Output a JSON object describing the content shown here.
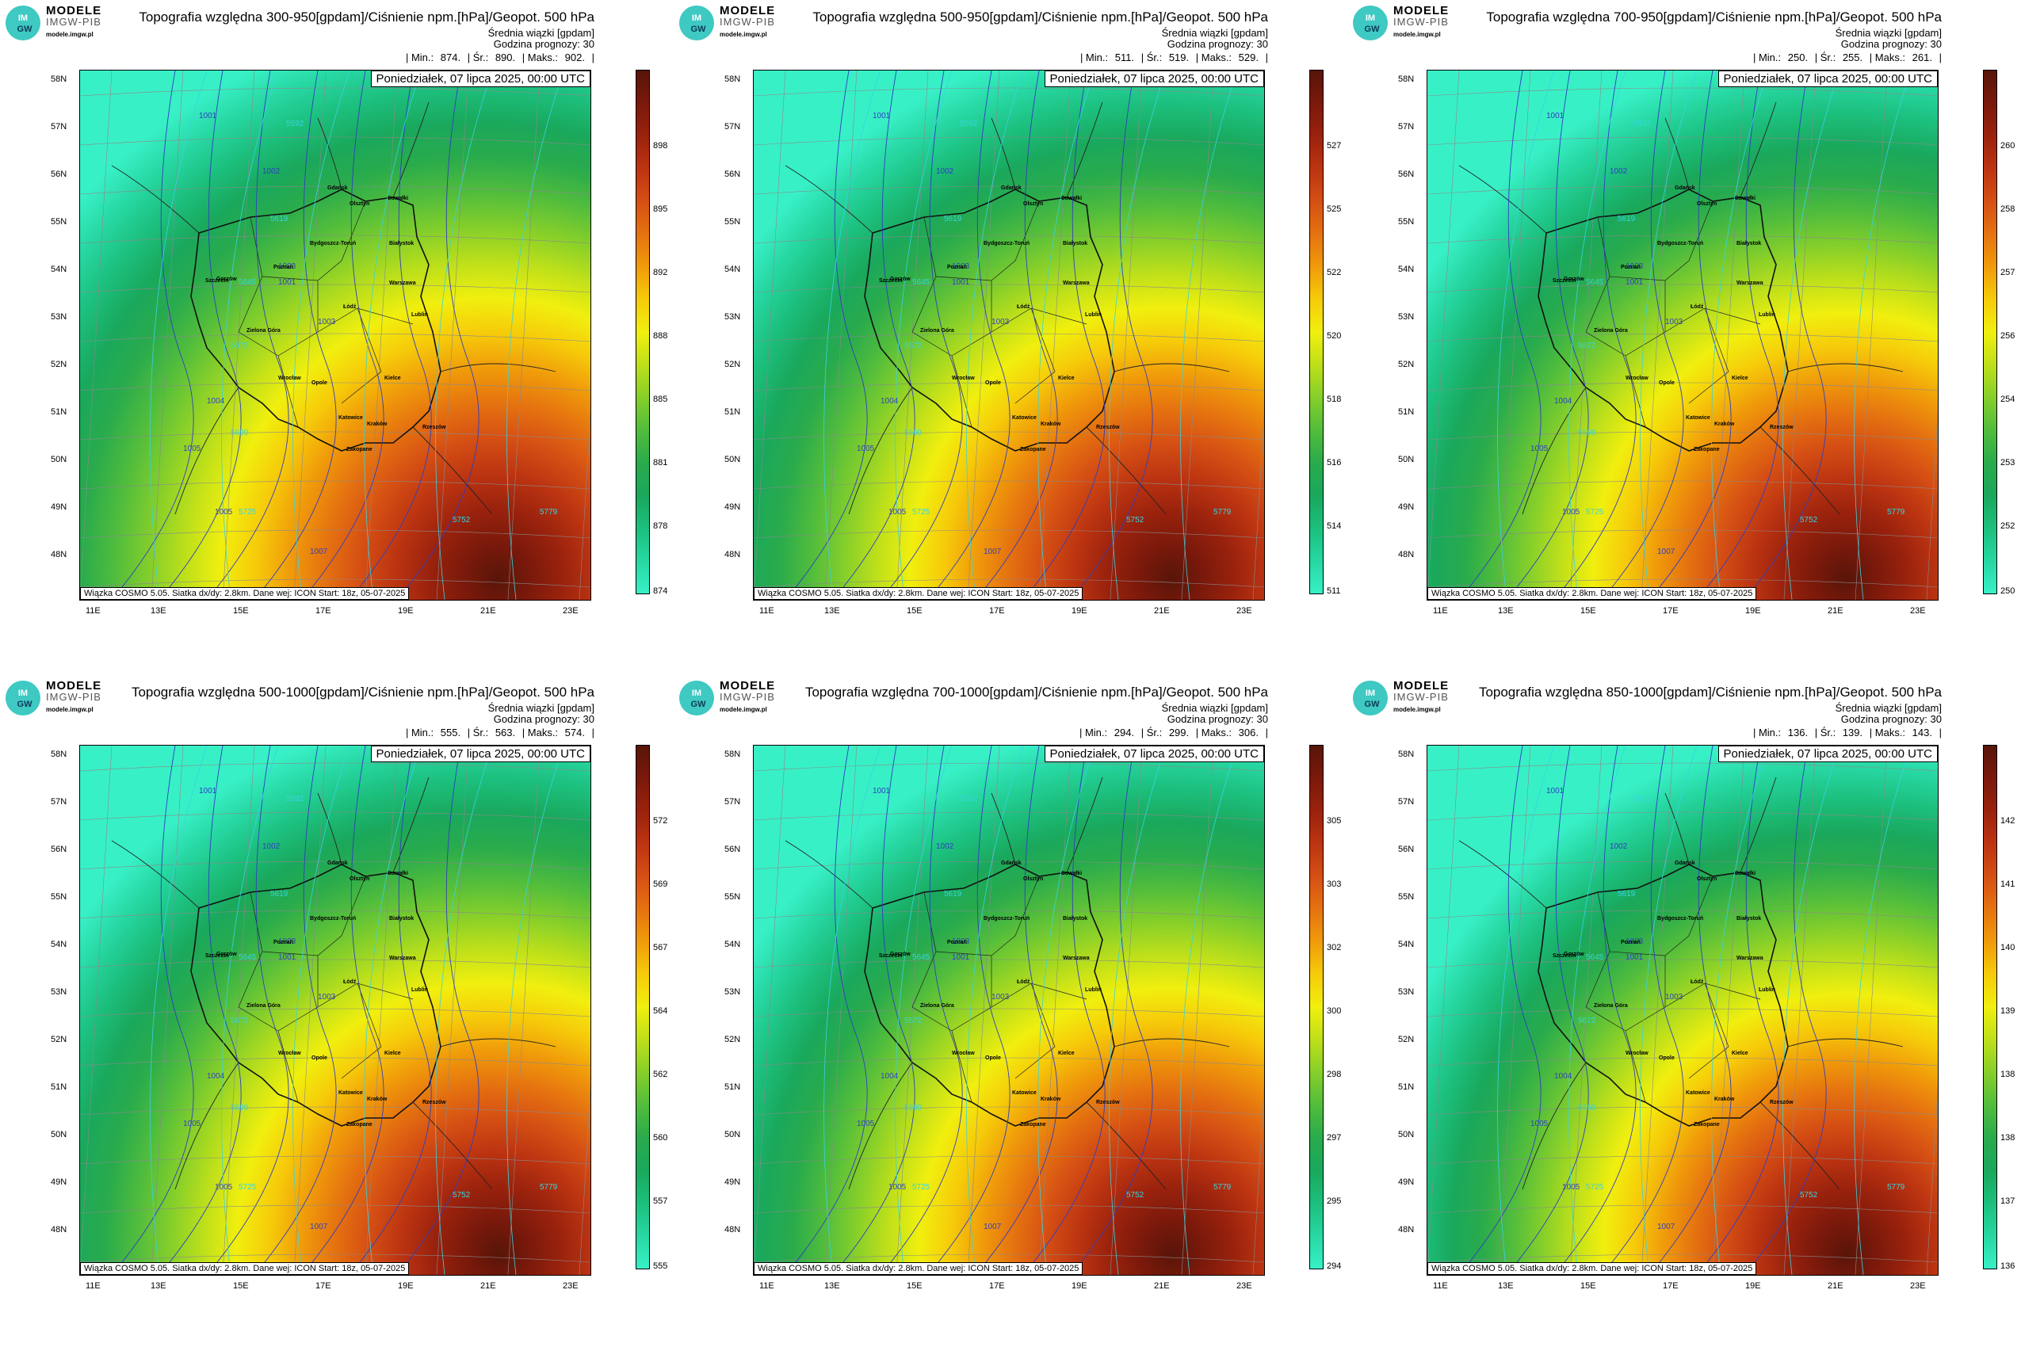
{
  "brand": {
    "line1": "MODELE",
    "line2": "IMGW-PIB",
    "site": "modele.imgw.pl",
    "logo_text_top": "IM",
    "logo_text_bottom": "GW"
  },
  "common": {
    "subtitle": "Średnia wiązki [gpdam]",
    "forecast_hour": "Godzina prognozy: 30",
    "date": "Poniedziałek, 07 lipca 2025, 00:00 UTC",
    "footer": "Wiązka COSMO 5.05. Siatka dx/dy: 2.8km. Dane wej: ICON Start: 18z, 05-07-2025",
    "min_label": "| Min.:",
    "mean_label": "| Śr.:",
    "max_label": "| Maks.:",
    "lat_labels": [
      "58N",
      "57N",
      "56N",
      "55N",
      "54N",
      "53N",
      "52N",
      "51N",
      "50N",
      "49N",
      "48N"
    ],
    "lon_labels": [
      "11E",
      "13E",
      "15E",
      "17E",
      "19E",
      "21E",
      "23E"
    ],
    "cities": [
      "Gdańsk",
      "Olsztyn",
      "Suwałki",
      "Szczecin",
      "Białystok",
      "Bydgoszcz-Toruń",
      "Gorzów",
      "Poznań",
      "Warszawa",
      "Zielona Góra",
      "Łódź",
      "Lublin",
      "Wrocław",
      "Opole",
      "Kielce",
      "Katowice",
      "Kraków",
      "Rzeszów",
      "Zakopane"
    ],
    "isobar_labels": [
      "1001",
      "1002",
      "1003",
      "1004",
      "1005",
      "1006",
      "1007"
    ],
    "height_labels": [
      "5592",
      "5619",
      "5645",
      "5672",
      "5699",
      "5725",
      "5752",
      "5779"
    ]
  },
  "colors": {
    "scale": [
      "#38f0c6",
      "#27d7a2",
      "#1cbf7d",
      "#1aa85c",
      "#2aab4c",
      "#52bd3c",
      "#86cf2a",
      "#bfe01a",
      "#f1ef0e",
      "#f6cb0a",
      "#f09b0a",
      "#e57210",
      "#d54f14",
      "#bc3411",
      "#9a220d",
      "#7a190b",
      "#581509"
    ],
    "isobar": "#2f3fbf",
    "height": "#37d4df"
  },
  "panels": [
    {
      "id": "p1",
      "title": "Topografia względna 300-950[gpdam]/Ciśnienie npm.[hPa]/Geopot. 500 hPa",
      "min": "874.",
      "mean": "890.",
      "max": "902.",
      "colorbar": [
        "898",
        "895",
        "892",
        "888",
        "885",
        "881",
        "878",
        "874"
      ],
      "warmth": 1.0
    },
    {
      "id": "p2",
      "title": "Topografia względna 500-950[gpdam]/Ciśnienie npm.[hPa]/Geopot. 500 hPa",
      "min": "511.",
      "mean": "519.",
      "max": "529.",
      "colorbar": [
        "527",
        "525",
        "522",
        "520",
        "518",
        "516",
        "514",
        "511"
      ],
      "warmth": 0.82
    },
    {
      "id": "p3",
      "title": "Topografia względna 700-950[gpdam]/Ciśnienie npm.[hPa]/Geopot. 500 hPa",
      "min": "250.",
      "mean": "255.",
      "max": "261.",
      "colorbar": [
        "260",
        "258",
        "257",
        "256",
        "254",
        "253",
        "252",
        "250"
      ],
      "warmth": 0.72
    },
    {
      "id": "p4",
      "title": "Topografia względna 500-1000[gpdam]/Ciśnienie npm.[hPa]/Geopot. 500 hPa",
      "min": "555.",
      "mean": "563.",
      "max": "574.",
      "colorbar": [
        "572",
        "569",
        "567",
        "564",
        "562",
        "560",
        "557",
        "555"
      ],
      "warmth": 0.82
    },
    {
      "id": "p5",
      "title": "Topografia względna 700-1000[gpdam]/Ciśnienie npm.[hPa]/Geopot. 500 hPa",
      "min": "294.",
      "mean": "299.",
      "max": "306.",
      "colorbar": [
        "305",
        "303",
        "302",
        "300",
        "298",
        "297",
        "295",
        "294"
      ],
      "warmth": 0.72
    },
    {
      "id": "p6",
      "title": "Topografia względna 850-1000[gpdam]/Ciśnienie npm.[hPa]/Geopot. 500 hPa",
      "min": "136.",
      "mean": "139.",
      "max": "143.",
      "colorbar": [
        "142",
        "141",
        "140",
        "139",
        "138",
        "138",
        "137",
        "136"
      ],
      "warmth": 0.6
    }
  ]
}
